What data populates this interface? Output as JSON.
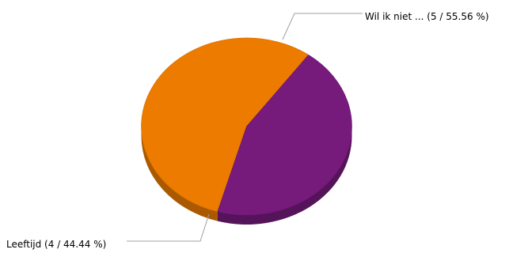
{
  "chart_data": {
    "type": "pie",
    "style": "3d",
    "slices": [
      {
        "name": "Wil ik niet ...",
        "count": 5,
        "percent": 55.56,
        "color": "#EC7B00",
        "label": "Wil ik niet ... (5 / 55.56 %)"
      },
      {
        "name": "Leeftijd",
        "count": 4,
        "percent": 44.44,
        "color": "#761A7C",
        "label": "Leeftijd (4 / 44.44 %)"
      }
    ],
    "leader_line_color": "#A0A0A0",
    "legend": "none"
  }
}
